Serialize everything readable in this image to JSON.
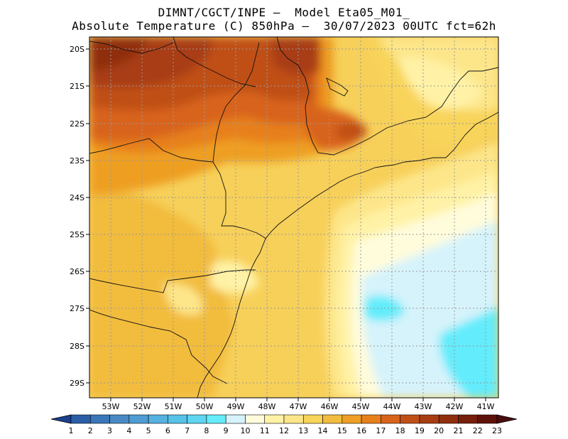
{
  "title": {
    "line1": "DIMNT/CGCT/INPE –  Model Eta05_M01_",
    "line2": "Absolute Temperature (C) 850hPa –  30/07/2023 00UTC fct=62h"
  },
  "map": {
    "lat_labels": [
      "20S",
      "21S",
      "22S",
      "23S",
      "24S",
      "25S",
      "26S",
      "27S",
      "28S",
      "29S"
    ],
    "lon_labels": [
      "53W",
      "52W",
      "51W",
      "50W",
      "49W",
      "48W",
      "47W",
      "46W",
      "45W",
      "44W",
      "43W",
      "42W",
      "41W"
    ]
  },
  "colorbar": {
    "labels": [
      "1",
      "2",
      "3",
      "4",
      "5",
      "6",
      "7",
      "8",
      "9",
      "10",
      "11",
      "12",
      "13",
      "14",
      "15",
      "16",
      "17",
      "18",
      "19",
      "20",
      "21",
      "22",
      "23"
    ],
    "colors": [
      "#1d3f8f",
      "#2a5ea6",
      "#3a76b8",
      "#4a89c4",
      "#4f9cd2",
      "#55b1df",
      "#57c3e8",
      "#5dd6f2",
      "#64ecfb",
      "#d6f3fb",
      "#fffcdc",
      "#fff2a6",
      "#fde68a",
      "#f8d45a",
      "#f2bc3e",
      "#ee9f24",
      "#e7801c",
      "#d8641b",
      "#c04f17",
      "#a83d12",
      "#8f2f0e",
      "#761f0b",
      "#5d1209",
      "#4a0d0e"
    ]
  }
}
